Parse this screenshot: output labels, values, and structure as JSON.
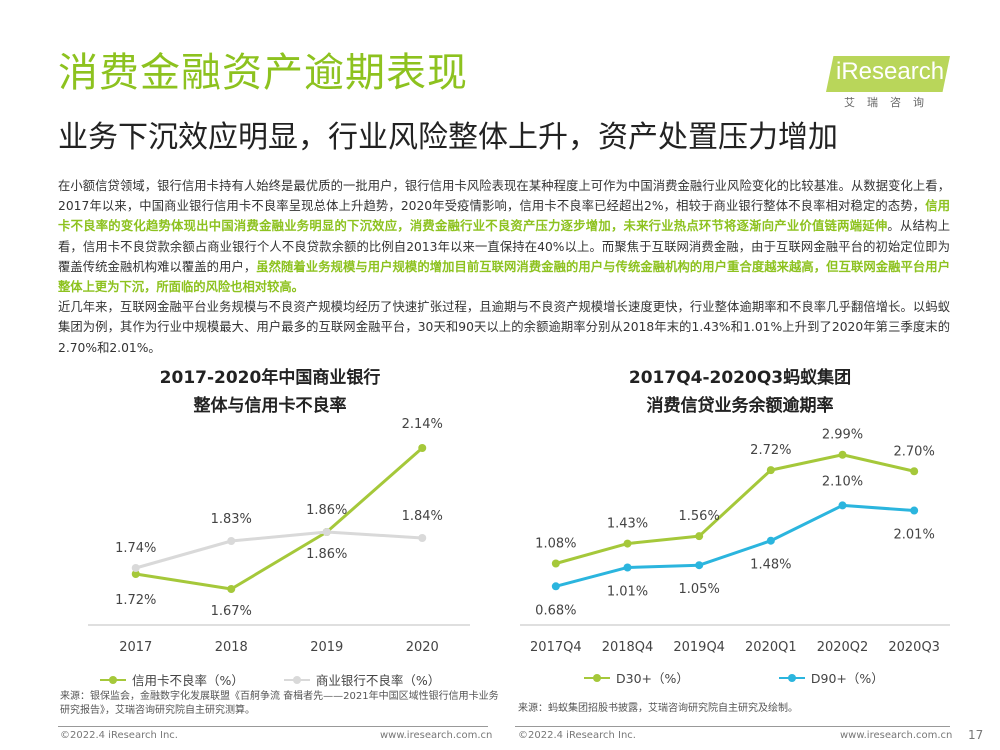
{
  "header": {
    "title": "消费金融资产逾期表现",
    "subtitle": "业务下沉效应明显，行业风险整体上升，资产处置压力增加",
    "logo_text": "iResearch",
    "logo_sub": "艾瑞咨询"
  },
  "body": {
    "p1_a": "在小额信贷领域，银行信用卡持有人始终是最优质的一批用户，银行信用卡风险表现在某种程度上可作为中国消费金融行业风险变化的比较基准。从数据变化上看，2017年以来，中国商业银行信用卡不良率呈现总体上升趋势，2020年受疫情影响，信用卡不良率已经超出2%，相较于商业银行整体不良率相对稳定的态势，",
    "p1_hl1": "信用卡不良率的变化趋势体现出中国消费金融业务明显的下沉效应，消费金融行业不良资产压力逐步增加，未来行业热点环节将逐渐向产业价值链两端延伸",
    "p1_b": "。从结构上看，信用卡不良贷款余额占商业银行个人不良贷款余额的比例自2013年以来一直保持在40%以上。而聚焦于互联网消费金融，由于互联网金融平台的初始定位即为覆盖传统金融机构难以覆盖的用户，",
    "p1_hl2": "虽然随着业务规模与用户规模的增加目前互联网消费金融的用户与传统金融机构的用户重合度越来越高，但互联网金融平台用户整体上更为下沉，所面临的风险也相对较高。",
    "p2": "近几年来，互联网金融平台业务规模与不良资产规模均经历了快速扩张过程，且逾期与不良资产规模增长速度更快，行业整体逾期率和不良率几乎翻倍增长。以蚂蚁集团为例，其作为行业中规模最大、用户最多的互联网金融平台，30天和90天以上的余额逾期率分别从2018年末的1.43%和1.01%上升到了2020年第三季度末的2.70%和2.01%。"
  },
  "chart_data": [
    {
      "type": "line",
      "title_line1": "2017-2020年中国商业银行",
      "title_line2": "整体与信用卡不良率",
      "categories": [
        "2017",
        "2018",
        "2019",
        "2020"
      ],
      "series": [
        {
          "name": "信用卡不良率（%）",
          "color": "#a5c83a",
          "values": [
            1.72,
            1.67,
            1.86,
            2.14
          ],
          "labels": [
            "1.72%",
            "1.67%",
            "1.86%",
            "2.14%"
          ]
        },
        {
          "name": "商业银行不良率（%）",
          "color": "#d9d9d9",
          "values": [
            1.74,
            1.83,
            1.86,
            1.84
          ],
          "labels": [
            "1.74%",
            "1.83%",
            "1.86%",
            "1.84%"
          ]
        }
      ],
      "ylim": [
        1.55,
        2.2
      ],
      "source": "来源：银保监会，金融数字化发展联盟《百舸争流 奋楫者先——2021年中国区域性银行信用卡业务研究报告》，艾瑞咨询研究院自主研究测算。"
    },
    {
      "type": "line",
      "title_line1": "2017Q4-2020Q3蚂蚁集团",
      "title_line2": "消费信贷业务余额逾期率",
      "categories": [
        "2017Q4",
        "2018Q4",
        "2019Q4",
        "2020Q1",
        "2020Q2",
        "2020Q3"
      ],
      "series": [
        {
          "name": "D30+（%）",
          "color": "#a5c83a",
          "values": [
            1.08,
            1.43,
            1.56,
            2.72,
            2.99,
            2.7
          ],
          "labels": [
            "1.08%",
            "1.43%",
            "1.56%",
            "2.72%",
            "2.99%",
            "2.70%"
          ]
        },
        {
          "name": "D90+（%）",
          "color": "#2bb5de",
          "values": [
            0.68,
            1.01,
            1.05,
            1.48,
            2.1,
            2.01
          ],
          "labels": [
            "0.68%",
            "1.01%",
            "1.05%",
            "1.48%",
            "2.10%",
            "2.01%"
          ]
        }
      ],
      "ylim": [
        0.0,
        3.6
      ],
      "source": "来源：蚂蚁集团招股书披露，艾瑞咨询研究院自主研究及绘制。"
    }
  ],
  "footer": {
    "copyright_left": "©2022.4 iResearch Inc.",
    "url_left": "www.iresearch.com.cn",
    "copyright_right": "©2022.4 iResearch Inc.",
    "url_right": "www.iresearch.com.cn",
    "page": "17"
  }
}
